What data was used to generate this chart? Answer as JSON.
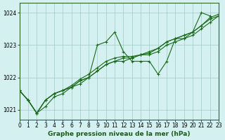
{
  "title": "Graphe pression niveau de la mer (hPa)",
  "background_color": "#d4f0f0",
  "grid_color": "#a0c8c8",
  "line_color": "#1a6b1a",
  "xlim": [
    0,
    23
  ],
  "ylim": [
    1020.7,
    1024.3
  ],
  "yticks": [
    1021,
    1022,
    1023,
    1024
  ],
  "xticks": [
    0,
    1,
    2,
    3,
    4,
    5,
    6,
    7,
    8,
    9,
    10,
    11,
    12,
    13,
    14,
    15,
    16,
    17,
    18,
    19,
    20,
    21,
    22,
    23
  ],
  "series": [
    [
      1021.6,
      1021.3,
      1020.9,
      1021.1,
      1021.4,
      1021.5,
      1021.7,
      1021.8,
      1022.0,
      1023.0,
      1023.1,
      1023.4,
      1022.8,
      1022.5,
      1022.5,
      1022.5,
      1022.1,
      1022.5,
      1023.2,
      1023.2,
      1023.4,
      1024.0,
      1023.9,
      null
    ],
    [
      1021.6,
      1021.3,
      1020.9,
      1021.3,
      1021.5,
      1021.6,
      1021.7,
      1021.9,
      1022.0,
      1022.2,
      1022.4,
      1022.5,
      1022.6,
      1022.6,
      1022.7,
      1022.8,
      1022.9,
      1023.1,
      1023.2,
      1023.3,
      1023.4,
      1023.6,
      1023.8,
      1023.9
    ],
    [
      1021.6,
      1021.3,
      1020.9,
      1021.3,
      1021.5,
      1021.6,
      1021.7,
      1021.9,
      1022.0,
      1022.2,
      1022.4,
      1022.5,
      1022.5,
      1022.6,
      1022.7,
      1022.7,
      1022.8,
      1023.0,
      1023.1,
      1023.2,
      1023.3,
      1023.5,
      1023.7,
      1023.9
    ],
    [
      1021.6,
      1021.3,
      1020.9,
      1021.3,
      1021.5,
      1021.6,
      1021.75,
      1021.95,
      1022.1,
      1022.3,
      1022.5,
      1022.6,
      1022.65,
      1022.65,
      1022.7,
      1022.75,
      1022.9,
      1023.1,
      1023.2,
      1023.3,
      1023.4,
      1023.6,
      1023.85,
      1023.95
    ]
  ]
}
